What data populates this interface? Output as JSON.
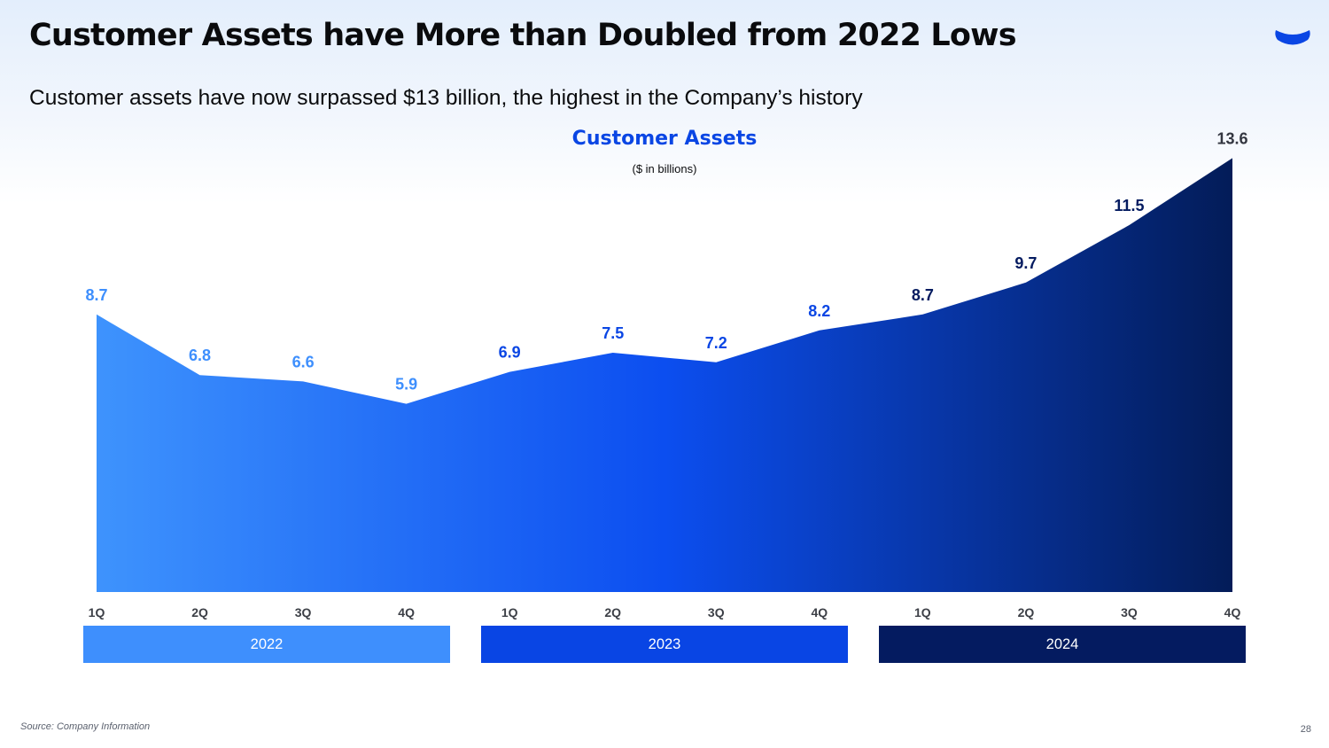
{
  "slide": {
    "title": "Customer Assets have More than Doubled from 2022 Lows",
    "subtitle": "Customer assets have now surpassed $13 billion, the highest in the Company’s history",
    "source": "Source: Company Information",
    "page_number": "28",
    "logo_icon": "coinbase-logo-icon"
  },
  "chart_data": {
    "type": "area",
    "title": "Customer Assets",
    "units": "($ in billions)",
    "categories": [
      "1Q",
      "2Q",
      "3Q",
      "4Q",
      "1Q",
      "2Q",
      "3Q",
      "4Q",
      "1Q",
      "2Q",
      "3Q",
      "4Q"
    ],
    "values": [
      8.7,
      6.8,
      6.6,
      5.9,
      6.9,
      7.5,
      7.2,
      8.2,
      8.7,
      9.7,
      11.5,
      13.6
    ],
    "value_labels": [
      "8.7",
      "6.8",
      "6.6",
      "5.9",
      "6.9",
      "7.5",
      "7.2",
      "8.2",
      "8.7",
      "9.7",
      "11.5",
      "13.6"
    ],
    "years": [
      {
        "label": "2022",
        "color": "#3e8ffd"
      },
      {
        "label": "2023",
        "color": "#0945e4"
      },
      {
        "label": "2024",
        "color": "#041b60"
      }
    ],
    "gradient_colors": [
      "#3e93fd",
      "#0c4ef0",
      "#031c58"
    ],
    "ylim": [
      0,
      14
    ],
    "xlabel": "",
    "ylabel": ""
  }
}
